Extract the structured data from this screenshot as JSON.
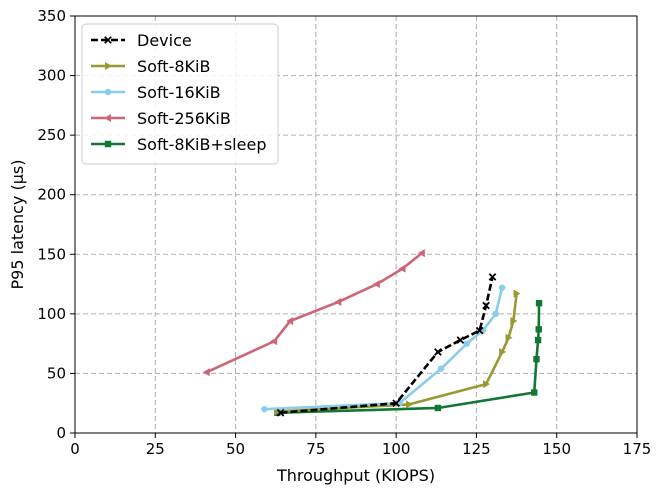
{
  "chart_data": {
    "type": "line",
    "title": "",
    "xlabel": "Throughput (KIOPS)",
    "ylabel": "P95 latency (µs)",
    "xlim": [
      0,
      175
    ],
    "ylim": [
      0,
      350
    ],
    "xticks": [
      0,
      25,
      50,
      75,
      100,
      125,
      150,
      175
    ],
    "yticks": [
      0,
      50,
      100,
      150,
      200,
      250,
      300,
      350
    ],
    "grid": true,
    "grid_style": "dashed",
    "legend_position": "upper-left",
    "series": [
      {
        "name": "Device",
        "color": "#000000",
        "line_style": "dashed",
        "marker": "x",
        "x": [
          64,
          100,
          113,
          120,
          126,
          128,
          130
        ],
        "y": [
          17,
          25,
          68,
          78,
          86,
          107,
          131
        ]
      },
      {
        "name": "Soft-8KiB",
        "color": "#999933",
        "line_style": "solid",
        "marker": "triangle-right",
        "x": [
          63,
          104,
          128,
          133,
          135,
          136.5,
          137.5
        ],
        "y": [
          18,
          24,
          41,
          68,
          80,
          94,
          117
        ]
      },
      {
        "name": "Soft-16KiB",
        "color": "#88ccee",
        "line_style": "solid",
        "marker": "circle",
        "x": [
          59,
          101,
          114,
          122,
          127,
          131,
          133
        ],
        "y": [
          20,
          25,
          54,
          75,
          86,
          100,
          122
        ]
      },
      {
        "name": "Soft-256KiB",
        "color": "#cc6677",
        "line_style": "solid",
        "marker": "triangle-left",
        "x": [
          41,
          62,
          67,
          82,
          94,
          102,
          108
        ],
        "y": [
          51,
          77,
          94,
          110,
          125,
          138,
          151
        ]
      },
      {
        "name": "Soft-8KiB+sleep",
        "color": "#117733",
        "line_style": "solid",
        "marker": "square",
        "x": [
          63,
          113,
          143,
          143.7,
          144.2,
          144.4,
          144.5
        ],
        "y": [
          17,
          21,
          34,
          62,
          78,
          87,
          109
        ]
      }
    ]
  }
}
